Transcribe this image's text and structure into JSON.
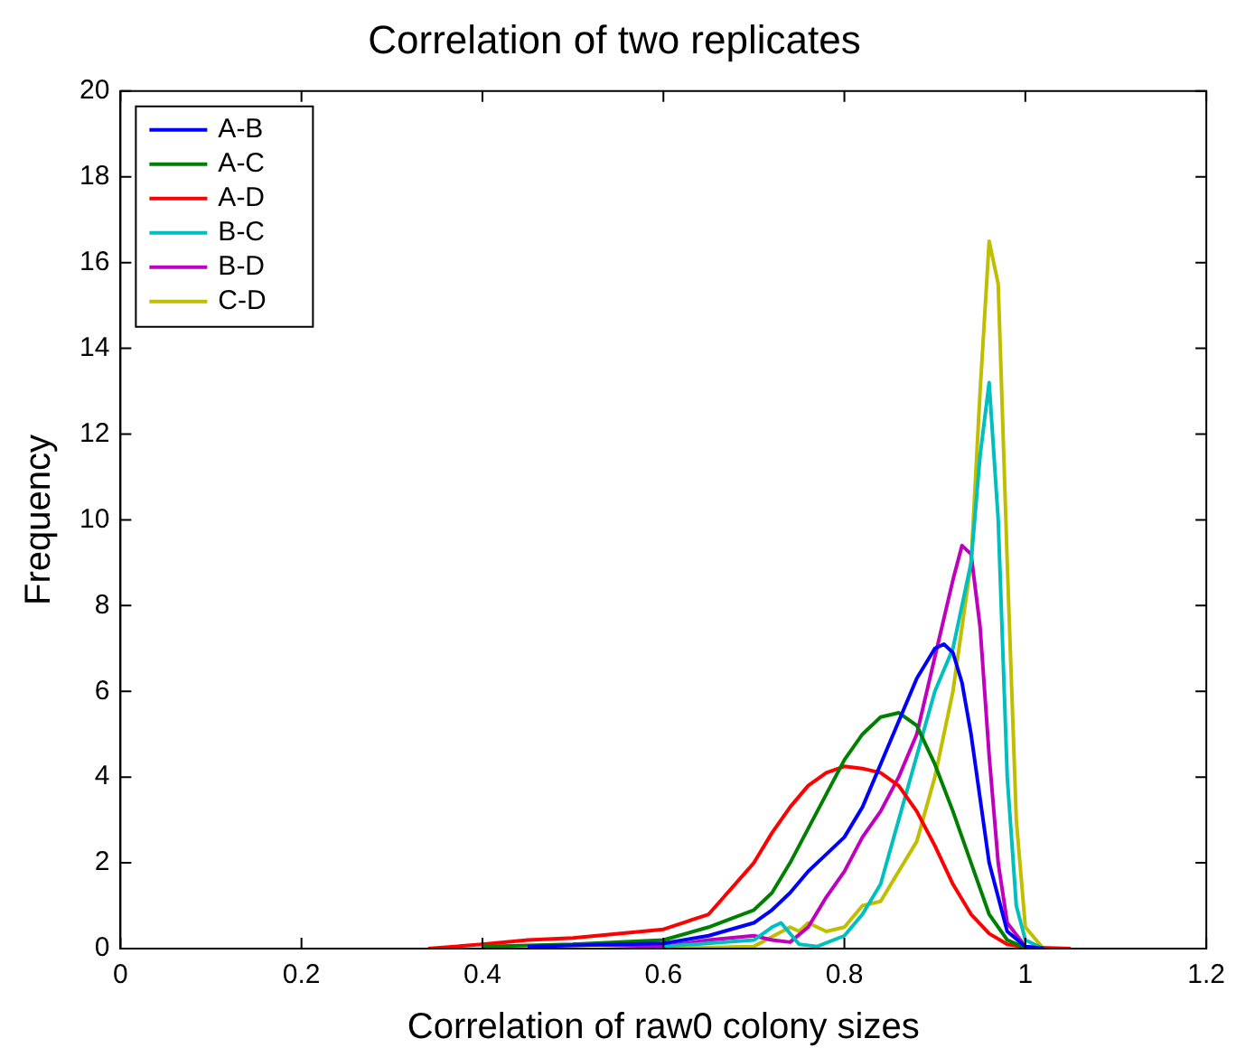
{
  "chart_data": {
    "type": "line",
    "title": "Correlation of two replicates",
    "xlabel": "Correlation of raw0 colony sizes",
    "ylabel": "Frequency",
    "xlim": [
      0,
      1.2
    ],
    "xticks": [
      0,
      0.2,
      0.4,
      0.6,
      0.8,
      1,
      1.2
    ],
    "ylim": [
      0,
      20
    ],
    "yticks": [
      0,
      2,
      4,
      6,
      8,
      10,
      12,
      14,
      16,
      18,
      20
    ],
    "grid": false,
    "legend": "top left",
    "marker": "none",
    "line_style": "solid",
    "series": [
      {
        "name": "A-B",
        "color": "#0000ff",
        "x": [
          0.45,
          0.55,
          0.6,
          0.65,
          0.7,
          0.72,
          0.74,
          0.76,
          0.78,
          0.8,
          0.82,
          0.84,
          0.86,
          0.88,
          0.9,
          0.91,
          0.92,
          0.93,
          0.94,
          0.96,
          0.98,
          1.0,
          1.02
        ],
        "values": [
          0.05,
          0.1,
          0.12,
          0.3,
          0.6,
          0.9,
          1.3,
          1.8,
          2.2,
          2.6,
          3.3,
          4.3,
          5.3,
          6.3,
          7.0,
          7.1,
          6.9,
          6.2,
          5.0,
          2.0,
          0.4,
          0.05,
          0
        ]
      },
      {
        "name": "A-C",
        "color": "#008000",
        "x": [
          0.4,
          0.5,
          0.6,
          0.65,
          0.7,
          0.72,
          0.74,
          0.76,
          0.78,
          0.8,
          0.82,
          0.84,
          0.86,
          0.88,
          0.9,
          0.92,
          0.94,
          0.96,
          0.98,
          1.0,
          1.02
        ],
        "values": [
          0.05,
          0.1,
          0.2,
          0.5,
          0.9,
          1.3,
          2.0,
          2.8,
          3.6,
          4.4,
          5.0,
          5.4,
          5.5,
          5.2,
          4.3,
          3.2,
          2.0,
          0.8,
          0.2,
          0.02,
          0
        ]
      },
      {
        "name": "A-D",
        "color": "#ff0000",
        "x": [
          0.34,
          0.4,
          0.45,
          0.5,
          0.55,
          0.6,
          0.65,
          0.7,
          0.72,
          0.74,
          0.76,
          0.78,
          0.8,
          0.82,
          0.84,
          0.86,
          0.88,
          0.9,
          0.92,
          0.94,
          0.96,
          0.98,
          1.0,
          1.05
        ],
        "values": [
          0,
          0.1,
          0.2,
          0.25,
          0.35,
          0.45,
          0.8,
          2.0,
          2.7,
          3.3,
          3.8,
          4.1,
          4.25,
          4.2,
          4.1,
          3.8,
          3.2,
          2.4,
          1.5,
          0.8,
          0.35,
          0.1,
          0.03,
          0
        ]
      },
      {
        "name": "B-C",
        "color": "#00bfbf",
        "x": [
          0.6,
          0.7,
          0.72,
          0.73,
          0.75,
          0.77,
          0.8,
          0.82,
          0.84,
          0.86,
          0.88,
          0.9,
          0.92,
          0.94,
          0.95,
          0.96,
          0.97,
          0.98,
          0.99,
          1.0,
          1.02
        ],
        "values": [
          0.05,
          0.2,
          0.5,
          0.6,
          0.1,
          0.05,
          0.3,
          0.8,
          1.5,
          3.0,
          4.5,
          6.0,
          7.0,
          9.0,
          11.5,
          13.2,
          10.0,
          4.0,
          1.0,
          0.2,
          0
        ]
      },
      {
        "name": "B-D",
        "color": "#bf00bf",
        "x": [
          0.5,
          0.6,
          0.65,
          0.7,
          0.72,
          0.74,
          0.76,
          0.78,
          0.8,
          0.82,
          0.84,
          0.86,
          0.88,
          0.9,
          0.92,
          0.93,
          0.94,
          0.95,
          0.96,
          0.97,
          0.98,
          1.0,
          1.02
        ],
        "values": [
          0.1,
          0.05,
          0.2,
          0.3,
          0.2,
          0.15,
          0.5,
          1.2,
          1.8,
          2.6,
          3.2,
          4.0,
          5.0,
          6.8,
          8.6,
          9.4,
          9.2,
          7.5,
          4.5,
          2.0,
          0.6,
          0.05,
          0
        ]
      },
      {
        "name": "C-D",
        "color": "#bfbf00",
        "x": [
          0.6,
          0.7,
          0.74,
          0.75,
          0.76,
          0.78,
          0.8,
          0.82,
          0.84,
          0.88,
          0.9,
          0.92,
          0.94,
          0.95,
          0.96,
          0.97,
          0.98,
          0.99,
          1.0,
          1.02
        ],
        "values": [
          0,
          0.05,
          0.5,
          0.4,
          0.6,
          0.4,
          0.5,
          1.0,
          1.1,
          2.5,
          4.0,
          6.0,
          9.0,
          13.0,
          16.5,
          15.5,
          9.0,
          3.0,
          0.5,
          0
        ]
      }
    ]
  }
}
